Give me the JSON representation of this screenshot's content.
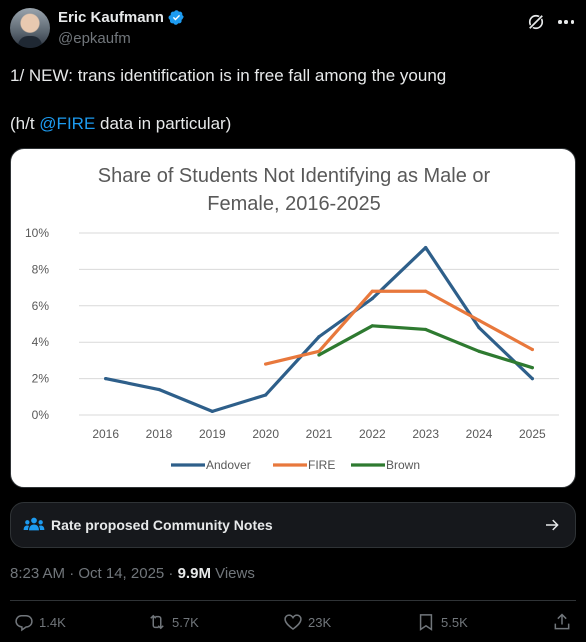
{
  "author": {
    "name": "Eric Kaufmann",
    "handle": "@epkaufm"
  },
  "tweet": {
    "line1": "1/ NEW: trans identification is in free fall among the young",
    "line2_prefix": "(h/t ",
    "mention": "@FIRE",
    "line2_suffix": " data in particular)"
  },
  "community_notes": {
    "label": "Rate proposed Community Notes"
  },
  "meta": {
    "time": "8:23 AM · Oct 14, 2025 · ",
    "views_count": "9.9M",
    "views_label": " Views"
  },
  "actions": {
    "replies": "1.4K",
    "reposts": "5.7K",
    "likes": "23K",
    "bookmarks": "5.5K"
  },
  "colors": {
    "accent": "#1d9bf0",
    "andover": "#2e5f8a",
    "fire": "#e8783c",
    "brown": "#2e7a30"
  },
  "chart_data": {
    "type": "line",
    "title_line1": "Share of Students Not Identifying as Male or",
    "title_line2": "Female, 2016-2025",
    "categories": [
      "2016",
      "2018",
      "2019",
      "2020",
      "2021",
      "2022",
      "2023",
      "2024",
      "2025"
    ],
    "y_ticks": [
      "0%",
      "2%",
      "4%",
      "6%",
      "8%",
      "10%"
    ],
    "ylim": [
      0,
      10
    ],
    "grid": true,
    "legend_position": "bottom",
    "series": [
      {
        "name": "Andover",
        "color": "#2e5f8a",
        "values": [
          2.0,
          1.4,
          0.2,
          1.1,
          4.3,
          6.4,
          9.2,
          4.8,
          2.0
        ]
      },
      {
        "name": "FIRE",
        "color": "#e8783c",
        "values": [
          null,
          null,
          null,
          2.8,
          3.5,
          6.8,
          6.8,
          5.2,
          3.6
        ]
      },
      {
        "name": "Brown",
        "color": "#2e7a30",
        "values": [
          null,
          null,
          null,
          null,
          3.3,
          4.9,
          4.7,
          3.5,
          2.6
        ]
      }
    ]
  }
}
